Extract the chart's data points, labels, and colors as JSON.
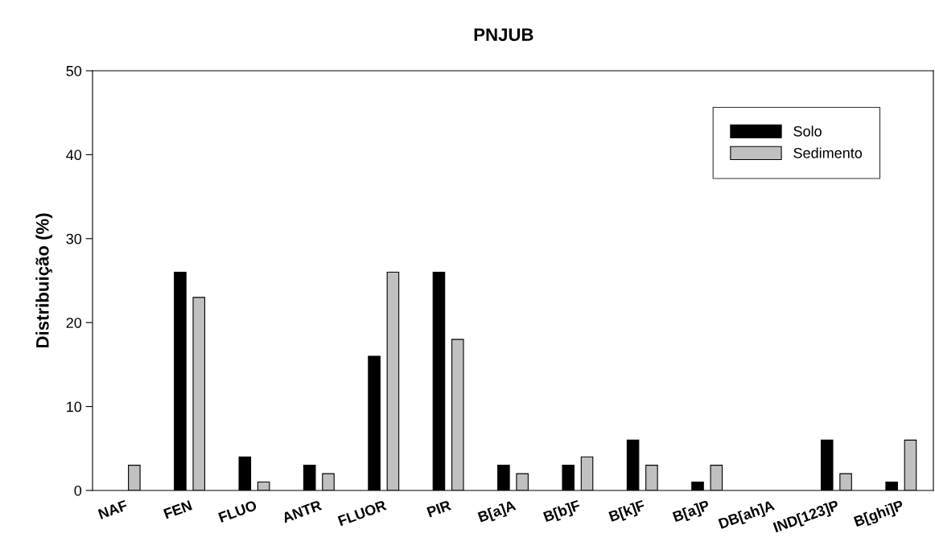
{
  "chart_data": {
    "type": "bar",
    "title": "PNJUB",
    "ylabel": "Distribuição (%)",
    "categories": [
      "NAF",
      "FEN",
      "FLUO",
      "ANTR",
      "FLUOR",
      "PIR",
      "B[a]A",
      "B[b]F",
      "B[k]F",
      "B[a]P",
      "DB[ah]A",
      "IND[123]P",
      "B[ghi]P"
    ],
    "series": [
      {
        "name": "Solo",
        "color": "#000000",
        "values": [
          0,
          26,
          4,
          3,
          16,
          26,
          3,
          3,
          6,
          1,
          0,
          6,
          1
        ]
      },
      {
        "name": "Sedimento",
        "color": "#c0c0c0",
        "values": [
          3,
          23,
          1,
          2,
          26,
          18,
          2,
          4,
          3,
          3,
          0,
          2,
          6
        ]
      }
    ],
    "ylim": [
      0,
      50
    ],
    "yticks": [
      0,
      10,
      20,
      30,
      40,
      50
    ],
    "grid": false,
    "legend": "top right"
  }
}
